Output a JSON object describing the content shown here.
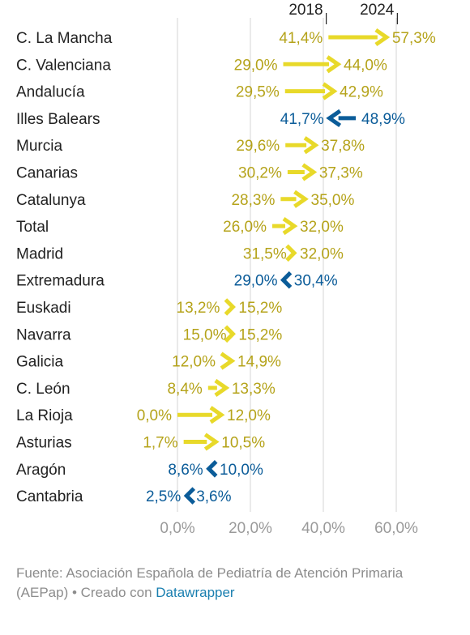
{
  "chart_data": {
    "type": "arrow-dot",
    "legend": {
      "start_label": "2018",
      "end_label": "2024"
    },
    "categories": [
      "C. La Mancha",
      "C. Valenciana",
      "Andalucía",
      "Illes Balears",
      "Murcia",
      "Canarias",
      "Catalunya",
      "Total",
      "Madrid",
      "Extremadura",
      "Euskadi",
      "Navarra",
      "Galicia",
      "C. León",
      "La Rioja",
      "Asturias",
      "Aragón",
      "Cantabria"
    ],
    "series": [
      {
        "name": "2018",
        "values": [
          41.4,
          29.0,
          29.5,
          48.9,
          29.6,
          30.2,
          28.3,
          26.0,
          31.5,
          30.4,
          13.2,
          15.0,
          12.0,
          8.4,
          0.0,
          1.7,
          10.0,
          3.6
        ]
      },
      {
        "name": "2024",
        "values": [
          57.3,
          44.0,
          42.9,
          41.7,
          37.8,
          37.3,
          35.0,
          32.0,
          32.0,
          29.0,
          15.2,
          15.2,
          14.9,
          13.3,
          12.0,
          10.5,
          8.6,
          2.5
        ]
      }
    ],
    "start_labels": [
      "41,4%",
      "29,0%",
      "29,5%",
      "48,9%",
      "29,6%",
      "30,2%",
      "28,3%",
      "26,0%",
      "31,5%",
      "30,4%",
      "13,2%",
      "15,0%",
      "12,0%",
      "8,4%",
      "0,0%",
      "1,7%",
      "10,0%",
      "3,6%"
    ],
    "end_labels": [
      "57,3%",
      "44,0%",
      "42,9%",
      "41,7%",
      "37,8%",
      "37,3%",
      "35,0%",
      "32,0%",
      "32,0%",
      "29,0%",
      "15,2%",
      "15,2%",
      "14,9%",
      "13,3%",
      "12,0%",
      "10,5%",
      "8,6%",
      "2,5%"
    ],
    "xlim": [
      0,
      72
    ],
    "xticks": [
      0,
      20,
      40,
      60
    ],
    "xtick_labels": [
      "0,0%",
      "20,0%",
      "40,0%",
      "60,0%"
    ],
    "grid": true,
    "colors": {
      "increase": "#e8d92a",
      "increase_text": "#b5a31a",
      "decrease": "#0b5c99",
      "decrease_text": "#0b5c99"
    }
  },
  "footer": {
    "source_text": "Fuente: Asociación Española de Pediatría de Atención Primaria (AEPap) • Creado con ",
    "link_text": "Datawrapper"
  }
}
